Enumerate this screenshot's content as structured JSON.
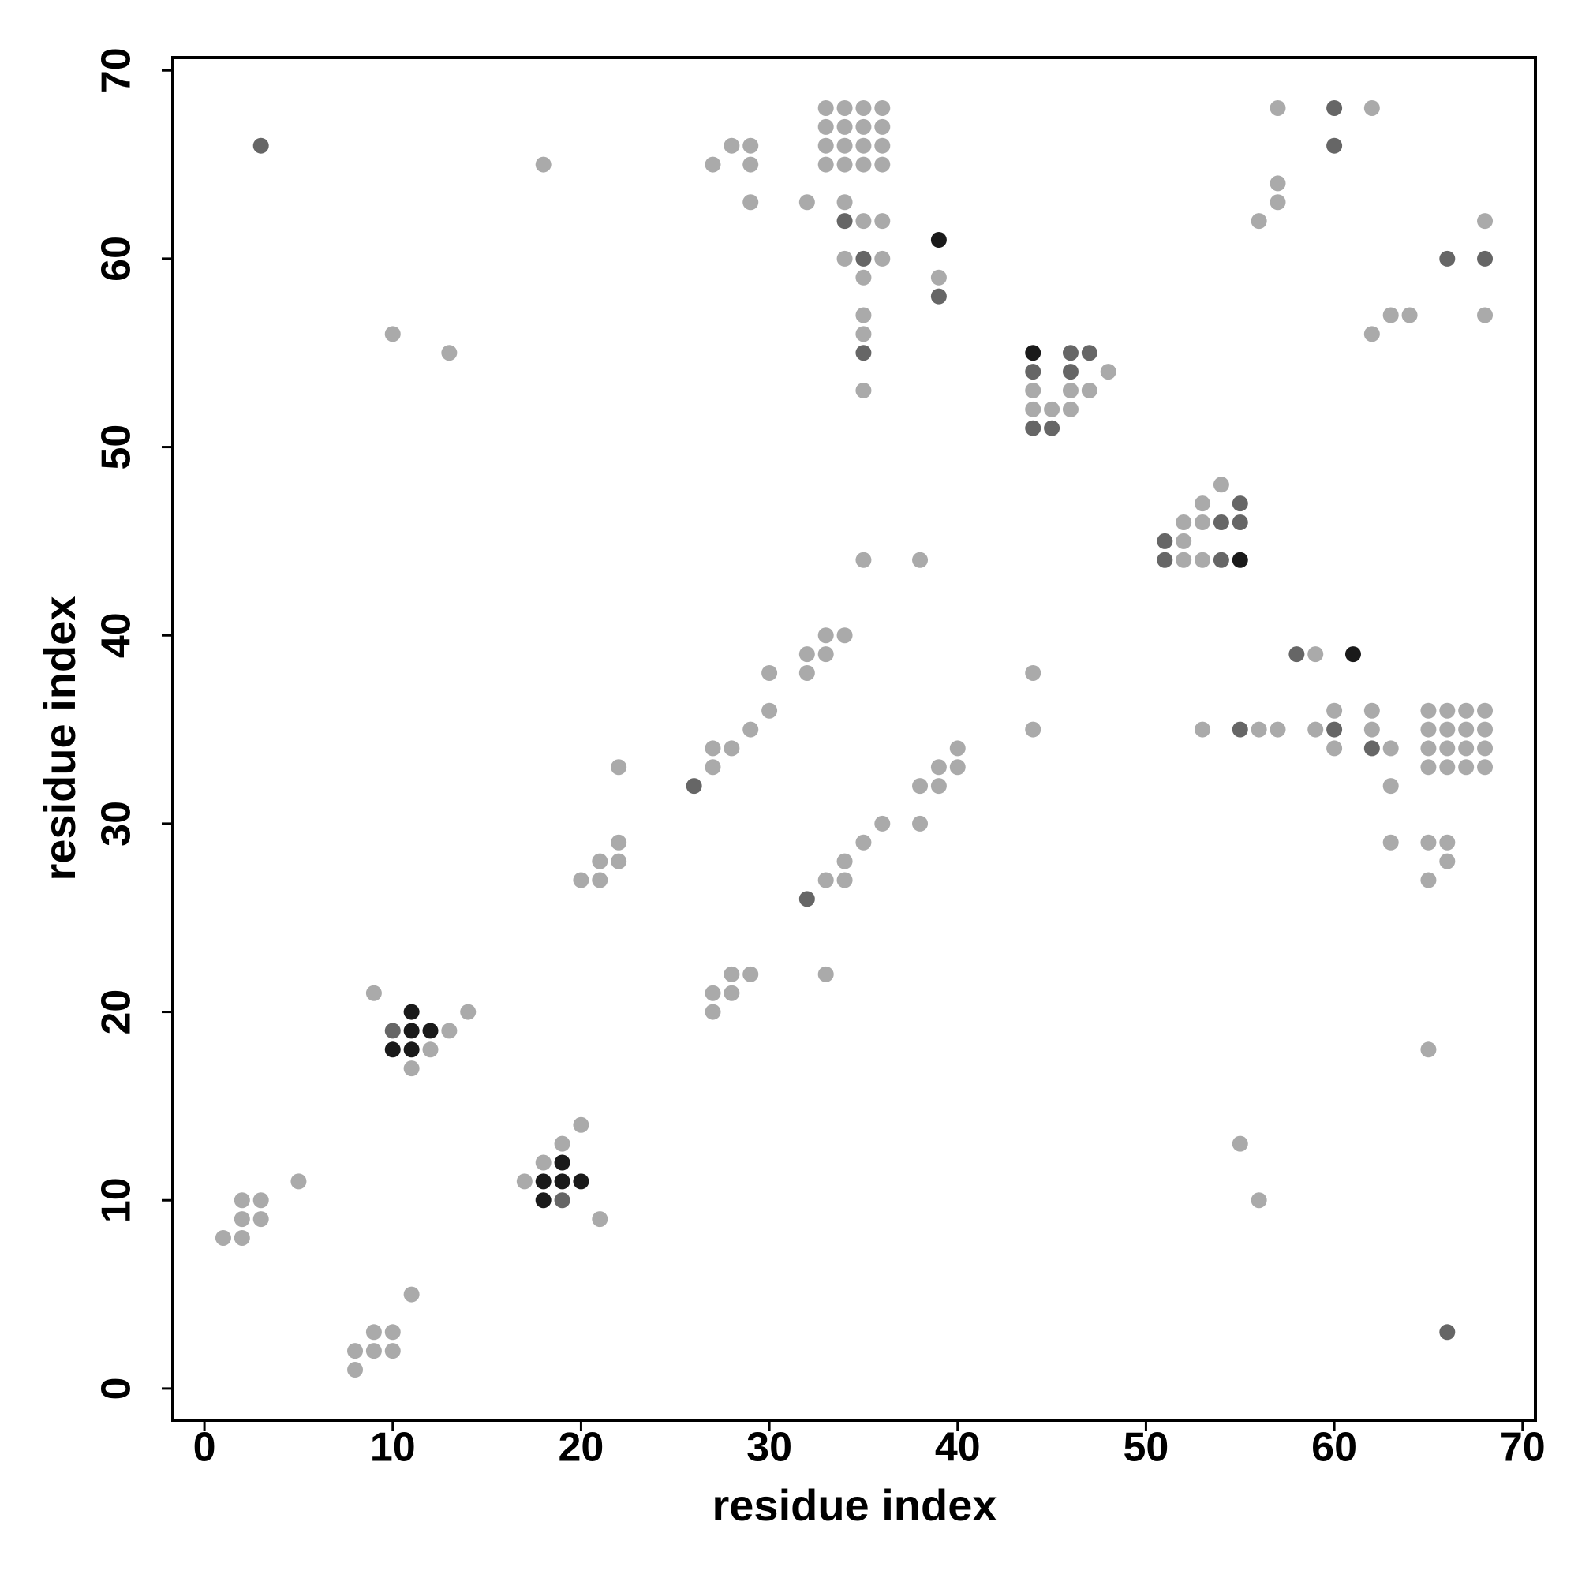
{
  "chart_data": {
    "type": "scatter",
    "xlabel": "residue index",
    "ylabel": "residue index",
    "xlim": [
      -1.68,
      70.68
    ],
    "ylim": [
      -1.68,
      70.68
    ],
    "xticks": [
      0,
      10,
      20,
      30,
      40,
      50,
      60,
      70
    ],
    "yticks": [
      0,
      10,
      20,
      30,
      40,
      50,
      60,
      70
    ],
    "series": [
      {
        "color": "#aaaaaa",
        "x": [
          33,
          34,
          35,
          36,
          57,
          62,
          33,
          34,
          35,
          36,
          28,
          29,
          33,
          34,
          35,
          36,
          18,
          27,
          29,
          33,
          34,
          35,
          36,
          57,
          29,
          32,
          34,
          57,
          35,
          36,
          56,
          68,
          34,
          36,
          35,
          39,
          35,
          63,
          64,
          68,
          10,
          35,
          62,
          13,
          48,
          35,
          44,
          46,
          47,
          44,
          45,
          46,
          54,
          53,
          52,
          53,
          52,
          35,
          38,
          52,
          53,
          33,
          34,
          32,
          33,
          59,
          30,
          32,
          44,
          30,
          60,
          62,
          65,
          66,
          67,
          68,
          29,
          44,
          53,
          56,
          57,
          59,
          62,
          65,
          66,
          67,
          68,
          27,
          28,
          40,
          60,
          63,
          65,
          66,
          67,
          68,
          22,
          27,
          39,
          40,
          65,
          66,
          67,
          68,
          38,
          39,
          63,
          36,
          38,
          22,
          35,
          63,
          65,
          66,
          21,
          22,
          34,
          66,
          20,
          21,
          33,
          34,
          65,
          28,
          29,
          33,
          9,
          27,
          28,
          14,
          27,
          13,
          12,
          65,
          11,
          20,
          19,
          55,
          18,
          5,
          17,
          2,
          3,
          56,
          2,
          3,
          21,
          1,
          2,
          11,
          9,
          10,
          8,
          9,
          10,
          8
        ],
        "y": [
          68,
          68,
          68,
          68,
          68,
          68,
          67,
          67,
          67,
          67,
          66,
          66,
          66,
          66,
          66,
          66,
          65,
          65,
          65,
          65,
          65,
          65,
          65,
          64,
          63,
          63,
          63,
          63,
          62,
          62,
          62,
          62,
          60,
          60,
          59,
          59,
          57,
          57,
          57,
          57,
          56,
          56,
          56,
          55,
          54,
          53,
          53,
          53,
          53,
          52,
          52,
          52,
          48,
          47,
          46,
          46,
          45,
          44,
          44,
          44,
          44,
          40,
          40,
          39,
          39,
          39,
          38,
          38,
          38,
          36,
          36,
          36,
          36,
          36,
          36,
          36,
          35,
          35,
          35,
          35,
          35,
          35,
          35,
          35,
          35,
          35,
          35,
          34,
          34,
          34,
          34,
          34,
          34,
          34,
          34,
          34,
          33,
          33,
          33,
          33,
          33,
          33,
          33,
          33,
          32,
          32,
          32,
          30,
          30,
          29,
          29,
          29,
          29,
          29,
          28,
          28,
          28,
          28,
          27,
          27,
          27,
          27,
          27,
          22,
          22,
          22,
          21,
          21,
          21,
          20,
          20,
          19,
          18,
          18,
          17,
          14,
          13,
          13,
          12,
          11,
          11,
          10,
          10,
          10,
          9,
          9,
          9,
          8,
          8,
          5,
          3,
          3,
          2,
          2,
          2,
          1
        ]
      },
      {
        "color": "#666666",
        "x": [
          60,
          3,
          60,
          34,
          35,
          66,
          68,
          39,
          35,
          46,
          47,
          44,
          46,
          44,
          45,
          55,
          54,
          55,
          51,
          51,
          54,
          58,
          55,
          60,
          62,
          26,
          32,
          10,
          19,
          66
        ],
        "y": [
          68,
          66,
          66,
          62,
          60,
          60,
          60,
          58,
          55,
          55,
          55,
          54,
          54,
          51,
          51,
          47,
          46,
          46,
          45,
          44,
          44,
          39,
          35,
          35,
          34,
          32,
          26,
          19,
          10,
          3
        ]
      },
      {
        "color": "#1a1a1a",
        "x": [
          39,
          44,
          55,
          61,
          11,
          11,
          12,
          10,
          11,
          19,
          18,
          19,
          20,
          18
        ],
        "y": [
          61,
          55,
          44,
          39,
          20,
          19,
          19,
          18,
          18,
          12,
          11,
          11,
          11,
          10
        ]
      }
    ]
  }
}
